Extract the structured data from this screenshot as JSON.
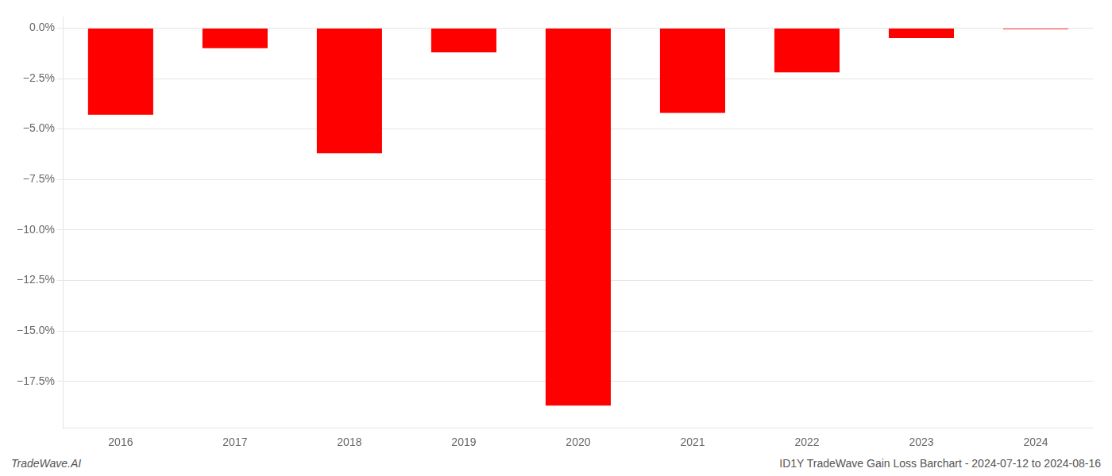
{
  "chart_data": {
    "type": "bar",
    "categories": [
      "2016",
      "2017",
      "2018",
      "2019",
      "2020",
      "2021",
      "2022",
      "2023",
      "2024"
    ],
    "values": [
      -4.3,
      -1.0,
      -6.2,
      -1.2,
      -18.7,
      -4.2,
      -2.2,
      -0.5,
      -0.05
    ],
    "color": "#ff0000",
    "ylim": [
      -19.8,
      0.55
    ],
    "yticks": [
      {
        "value": 0.0,
        "label": "0.0%"
      },
      {
        "value": -2.5,
        "label": "−2.5%"
      },
      {
        "value": -5.0,
        "label": "−5.0%"
      },
      {
        "value": -7.5,
        "label": "−7.5%"
      },
      {
        "value": -10.0,
        "label": "−10.0%"
      },
      {
        "value": -12.5,
        "label": "−12.5%"
      },
      {
        "value": -15.0,
        "label": "−15.0%"
      },
      {
        "value": -17.5,
        "label": "−17.5%"
      }
    ],
    "grid": true,
    "annotations": [
      "TradeWave.AI",
      "ID1Y TradeWave Gain Loss Barchart - 2024-07-12 to 2024-08-16"
    ]
  }
}
